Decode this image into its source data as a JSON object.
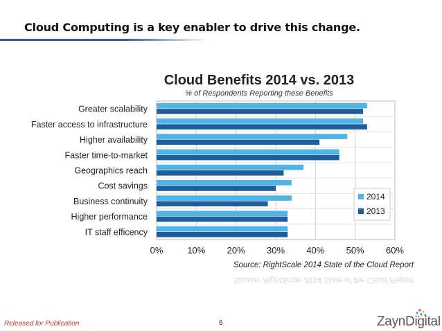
{
  "slide": {
    "title": "Cloud Computing is a key enabler to drive this change.",
    "footer_note": "Released for Publication",
    "page_number": "6",
    "logo_text": "ZaynDigital"
  },
  "colors": {
    "series_2014": "#4fb5e6",
    "series_2013": "#1f5e9c",
    "title_rule": "#2e5c9a",
    "footer_note": "#c0392b"
  },
  "chart_data": {
    "type": "bar",
    "orientation": "horizontal",
    "title": "Cloud Benefits 2014 vs. 2013",
    "subtitle": "% of Respondents Reporting these Benefits",
    "source": "Source: RightScale 2014 State of the Cloud Report",
    "categories": [
      "Greater scalability",
      "Faster access to infrastructure",
      "Higher availability",
      "Faster time-to-market",
      "Geographics reach",
      "Cost savings",
      "Business continuity",
      "Higher performance",
      "IT staff efficency"
    ],
    "series": [
      {
        "name": "2014",
        "values": [
          53,
          52,
          48,
          46,
          37,
          34,
          34,
          33,
          33
        ]
      },
      {
        "name": "2013",
        "values": [
          52,
          53,
          41,
          46,
          32,
          30,
          28,
          33,
          33
        ]
      }
    ],
    "xlim": [
      0,
      60
    ],
    "xticks": [
      "0%",
      "10%",
      "20%",
      "30%",
      "40%",
      "50%",
      "60%"
    ],
    "grid": true,
    "legend": "right"
  }
}
